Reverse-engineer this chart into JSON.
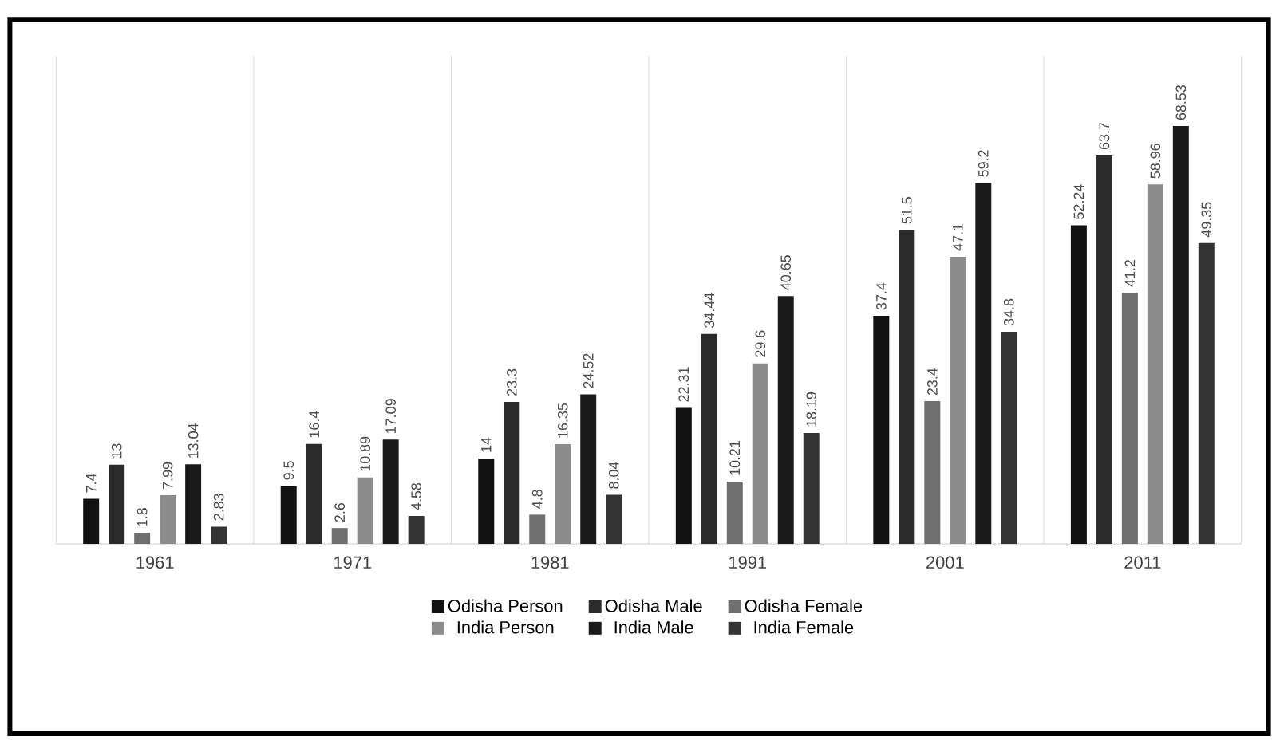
{
  "chart_data": {
    "type": "bar",
    "categories": [
      "1961",
      "1971",
      "1981",
      "1991",
      "2001",
      "2011"
    ],
    "series": [
      {
        "name": "Odisha Person",
        "color": "#111111",
        "values": [
          7.4,
          9.5,
          14,
          22.31,
          37.4,
          52.24
        ]
      },
      {
        "name": "Odisha Male",
        "color": "#2b2b2b",
        "values": [
          13,
          16.4,
          23.3,
          34.44,
          51.5,
          63.7
        ]
      },
      {
        "name": "Odisha Female",
        "color": "#6f6f6f",
        "values": [
          1.8,
          2.6,
          4.8,
          10.21,
          23.4,
          41.2
        ]
      },
      {
        "name": "India Person",
        "color": "#8c8c8c",
        "values": [
          7.99,
          10.89,
          16.35,
          29.6,
          47.1,
          58.96
        ]
      },
      {
        "name": "India Male",
        "color": "#1a1a1a",
        "values": [
          13.04,
          17.09,
          24.52,
          40.65,
          59.2,
          68.53
        ]
      },
      {
        "name": "India Female",
        "color": "#333333",
        "values": [
          2.83,
          4.58,
          8.04,
          18.19,
          34.8,
          49.35
        ]
      }
    ],
    "ylim": [
      0,
      80
    ],
    "tick_labels": "x",
    "grid": "x",
    "legend": "bottom",
    "data_labels": true
  }
}
